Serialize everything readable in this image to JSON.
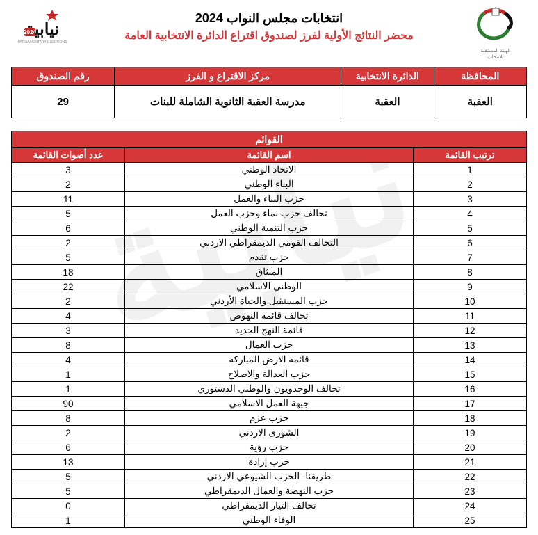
{
  "header": {
    "title_main": "انتخابات مجلس النواب 2024",
    "title_sub": "محضر النتائج الأولية لفرز لصندوق اقتراع الدائرة الانتخابية العامة"
  },
  "colors": {
    "accent": "#d6383a",
    "text_on_accent": "#ffffff",
    "border": "#000000",
    "watermark": "#e7e7e7"
  },
  "info": {
    "headers": {
      "governorate": "المحافظة",
      "district": "الدائرة الانتخابية",
      "center": "مركز الاقتراع و الفرز",
      "box": "رقم الصندوق"
    },
    "values": {
      "governorate": "العقبة",
      "district": "العقبة",
      "center": "مدرسة العقبة الثانوية الشاملة للبنات",
      "box": "29"
    }
  },
  "lists": {
    "section_title": "القوائم",
    "columns": {
      "rank": "ترتيب القائمة",
      "name": "اسم القائمة",
      "votes": "عدد أصوات القائمة"
    },
    "rows": [
      {
        "rank": "1",
        "name": "الاتحاد الوطني",
        "votes": "3"
      },
      {
        "rank": "2",
        "name": "البناء الوطني",
        "votes": "2"
      },
      {
        "rank": "3",
        "name": "حزب البناء والعمل",
        "votes": "11"
      },
      {
        "rank": "4",
        "name": "تحالف حزب نماء وحزب العمل",
        "votes": "5"
      },
      {
        "rank": "5",
        "name": "حزب التنمية الوطني",
        "votes": "6"
      },
      {
        "rank": "6",
        "name": "التحالف القومي الديمقراطي الاردني",
        "votes": "2"
      },
      {
        "rank": "7",
        "name": "حزب تقدم",
        "votes": "5"
      },
      {
        "rank": "8",
        "name": "الميثاق",
        "votes": "18"
      },
      {
        "rank": "9",
        "name": "الوطني الاسلامي",
        "votes": "22"
      },
      {
        "rank": "10",
        "name": "حزب المستقبل والحياة الأردني",
        "votes": "2"
      },
      {
        "rank": "11",
        "name": "تحالف قائمة النهوض",
        "votes": "4"
      },
      {
        "rank": "12",
        "name": "قائمة النهج الجديد",
        "votes": "3"
      },
      {
        "rank": "13",
        "name": "حزب العمال",
        "votes": "8"
      },
      {
        "rank": "14",
        "name": "قائمة الارض المباركة",
        "votes": "4"
      },
      {
        "rank": "15",
        "name": "حزب العدالة والاصلاح",
        "votes": "1"
      },
      {
        "rank": "16",
        "name": "تحالف الوحدويون والوطني الدستوري",
        "votes": "1"
      },
      {
        "rank": "17",
        "name": "جبهة العمل الاسلامي",
        "votes": "90"
      },
      {
        "rank": "18",
        "name": "حزب عزم",
        "votes": "8"
      },
      {
        "rank": "19",
        "name": "الشورى الاردني",
        "votes": "2"
      },
      {
        "rank": "20",
        "name": "حزب رؤية",
        "votes": "6"
      },
      {
        "rank": "21",
        "name": "حزب إرادة",
        "votes": "13"
      },
      {
        "rank": "22",
        "name": "طريقنا- الحزب الشيوعي الاردني",
        "votes": "5"
      },
      {
        "rank": "23",
        "name": "حزب النهضة والعمال الديمقراطي",
        "votes": "5"
      },
      {
        "rank": "24",
        "name": "تحالف التيار الديمقراطي",
        "votes": "0"
      },
      {
        "rank": "25",
        "name": "الوفاء الوطني",
        "votes": "1"
      }
    ]
  }
}
